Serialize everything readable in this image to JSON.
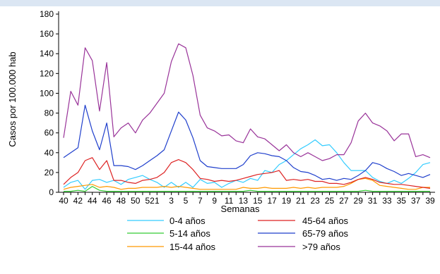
{
  "chart_data": {
    "type": "line",
    "title": "",
    "xlabel": "Semanas",
    "ylabel": "Casos por 100.000 hab",
    "ylim": [
      0,
      180
    ],
    "yticks": [
      0,
      20,
      40,
      60,
      80,
      100,
      120,
      140,
      160,
      180
    ],
    "grid": false,
    "legend_position": "bottom",
    "x": [
      "40",
      "41",
      "42",
      "43",
      "44",
      "45",
      "46",
      "47",
      "48",
      "49",
      "50",
      "51",
      "52",
      "1",
      "2",
      "3",
      "4",
      "5",
      "6",
      "7",
      "8",
      "9",
      "10",
      "11",
      "12",
      "13",
      "14",
      "15",
      "16",
      "17",
      "18",
      "19",
      "20",
      "21",
      "22",
      "23",
      "24",
      "25",
      "26",
      "27",
      "28",
      "29",
      "30",
      "31",
      "32",
      "33",
      "34",
      "35",
      "36",
      "37",
      "38",
      "39"
    ],
    "x_tick_labels": [
      "40",
      "42",
      "44",
      "46",
      "48",
      "50",
      "52",
      "1",
      "3",
      "5",
      "7",
      "9",
      "11",
      "13",
      "15",
      "17",
      "19",
      "21",
      "23",
      "25",
      "27",
      "29",
      "31",
      "33",
      "35",
      "37",
      "39"
    ],
    "series": [
      {
        "name": "0-4 años",
        "color": "#33ccff",
        "values": [
          5,
          10,
          12,
          3,
          12,
          13,
          10,
          12,
          8,
          13,
          15,
          17,
          13,
          10,
          5,
          10,
          5,
          10,
          5,
          13,
          9,
          10,
          5,
          9,
          12,
          10,
          14,
          12,
          22,
          20,
          28,
          32,
          38,
          44,
          48,
          53,
          47,
          48,
          40,
          30,
          22,
          22,
          22,
          15,
          11,
          9,
          12,
          9,
          14,
          20,
          28,
          30
        ]
      },
      {
        "name": "5-14 años",
        "color": "#33cc33",
        "values": [
          1,
          1,
          2,
          1,
          6,
          2,
          1,
          1,
          1,
          1,
          1,
          1,
          1,
          1,
          1,
          1,
          1,
          1,
          1,
          1,
          1,
          1,
          1,
          1,
          1,
          1,
          2,
          1,
          1,
          1,
          1,
          1,
          1,
          1,
          1,
          1,
          1,
          1,
          1,
          1,
          1,
          1,
          2,
          1,
          1,
          1,
          1,
          1,
          1,
          1,
          1,
          1
        ]
      },
      {
        "name": "15-44 años",
        "color": "#ff9900",
        "values": [
          3,
          5,
          6,
          7,
          8,
          5,
          6,
          5,
          3,
          4,
          4,
          5,
          5,
          5,
          6,
          5,
          6,
          5,
          4,
          3,
          3,
          3,
          3,
          3,
          3,
          5,
          4,
          4,
          5,
          4,
          4,
          4,
          5,
          4,
          5,
          4,
          5,
          5,
          5,
          6,
          9,
          13,
          14,
          12,
          7,
          6,
          5,
          4,
          3,
          3,
          5,
          5
        ]
      },
      {
        "name": "45-64 años",
        "color": "#dd2222",
        "values": [
          8,
          15,
          20,
          32,
          35,
          23,
          32,
          12,
          12,
          10,
          9,
          12,
          13,
          15,
          20,
          30,
          33,
          30,
          23,
          14,
          13,
          11,
          12,
          11,
          12,
          14,
          16,
          18,
          19,
          20,
          22,
          12,
          13,
          12,
          13,
          11,
          11,
          9,
          9,
          8,
          10,
          13,
          15,
          13,
          10,
          9,
          8,
          8,
          7,
          6,
          5,
          4
        ]
      },
      {
        "name": "65-79 años",
        "color": "#1f3fcc",
        "values": [
          35,
          40,
          45,
          88,
          62,
          43,
          70,
          27,
          27,
          26,
          23,
          27,
          32,
          37,
          43,
          62,
          81,
          73,
          55,
          32,
          26,
          25,
          24,
          24,
          24,
          28,
          37,
          40,
          39,
          37,
          36,
          32,
          25,
          21,
          20,
          17,
          13,
          14,
          12,
          14,
          13,
          17,
          22,
          30,
          28,
          24,
          21,
          17,
          19,
          17,
          15,
          18
        ]
      },
      {
        "name": ">79 años",
        "color": "#993399",
        "values": [
          55,
          102,
          88,
          146,
          133,
          82,
          131,
          56,
          65,
          70,
          60,
          73,
          80,
          90,
          100,
          132,
          150,
          146,
          118,
          78,
          65,
          62,
          57,
          58,
          52,
          50,
          64,
          56,
          54,
          48,
          42,
          48,
          40,
          36,
          40,
          36,
          32,
          34,
          38,
          38,
          50,
          72,
          80,
          70,
          67,
          62,
          52,
          59,
          59,
          36,
          38,
          35
        ]
      }
    ]
  }
}
